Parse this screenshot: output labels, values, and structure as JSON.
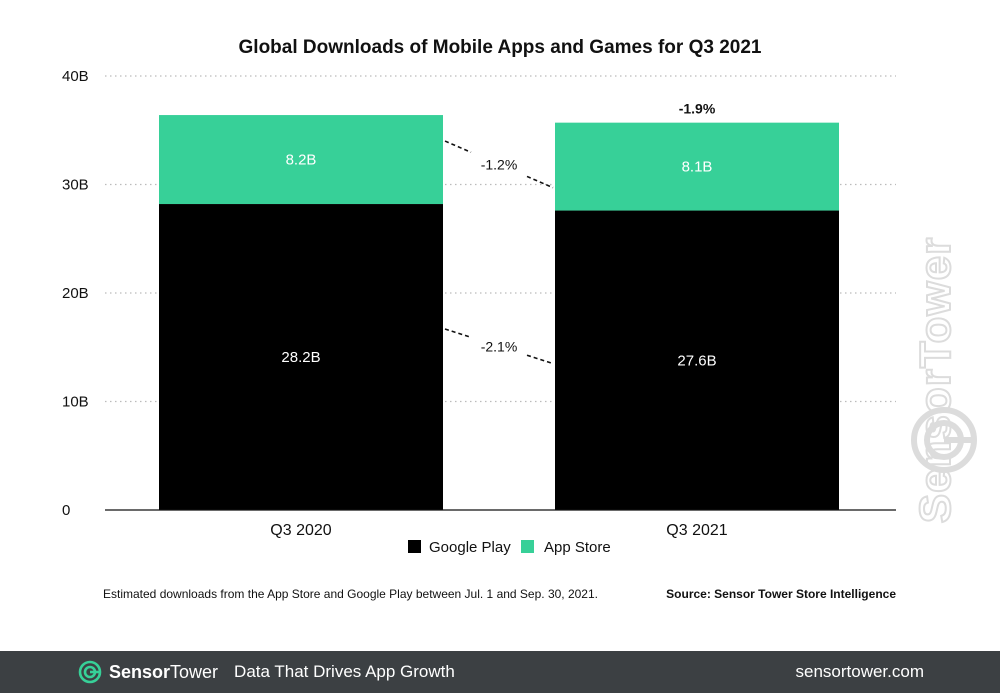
{
  "chart_data": {
    "type": "bar",
    "stacked": true,
    "title": "Global Downloads of Mobile Apps and Games for Q3 2021",
    "categories": [
      "Q3 2020",
      "Q3 2021"
    ],
    "series": [
      {
        "name": "Google Play",
        "values": [
          28.2,
          27.6
        ],
        "labels": [
          "28.2B",
          "27.6B"
        ],
        "color": "#000000"
      },
      {
        "name": "App Store",
        "values": [
          8.2,
          8.1
        ],
        "labels": [
          "8.2B",
          "8.1B"
        ],
        "color": "#37d098"
      }
    ],
    "ylim": [
      0,
      40
    ],
    "yticks": [
      0,
      10,
      20,
      30,
      40
    ],
    "ytick_labels": [
      "0",
      "10B",
      "20B",
      "30B",
      "40B"
    ],
    "grid": "dotted horizontal",
    "legend_position": "bottom",
    "annotations": {
      "google_play_change": "-2.1%",
      "app_store_change": "-1.2%",
      "total_change": "-1.9%"
    },
    "footnote": "Estimated downloads from the App Store and Google Play between Jul. 1 and Sep. 30, 2021.",
    "source": "Source: Sensor Tower Store Intelligence",
    "watermark": "SensorTower"
  },
  "footer": {
    "brand_part1": "Sensor",
    "brand_part2": "Tower",
    "tagline": "Data That Drives App Growth",
    "url": "sensortower.com",
    "icon": "sensortower-logo-icon"
  }
}
